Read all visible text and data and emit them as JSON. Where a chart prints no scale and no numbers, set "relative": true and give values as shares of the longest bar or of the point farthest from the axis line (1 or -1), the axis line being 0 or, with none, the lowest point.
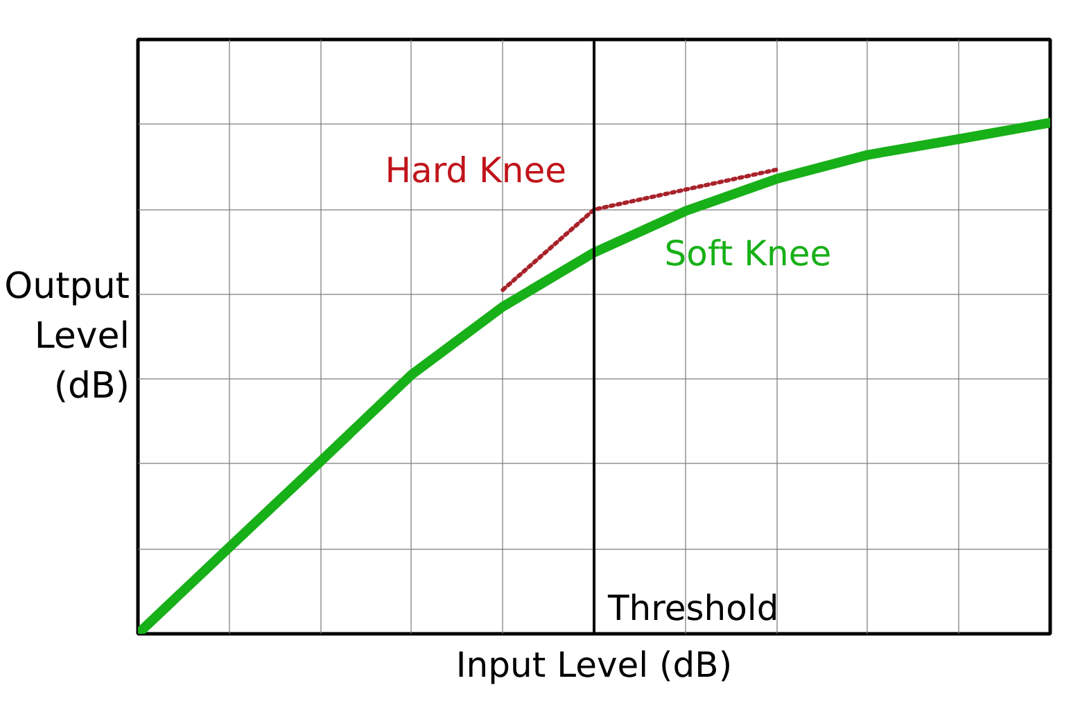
{
  "chart_data": {
    "type": "line",
    "relative": true,
    "xlabel": "Input Level (dB)",
    "ylabel": "Output\nLevel\n(dB)",
    "categories": [
      null,
      null,
      null,
      null,
      null,
      null,
      null,
      null,
      null,
      null,
      null
    ],
    "grid": true,
    "marker": "none",
    "annotations": [
      "Threshold"
    ],
    "series": [
      {
        "name": "Hard Knee",
        "color": "#a8222a",
        "line_style": "dotted",
        "values": [
          null,
          null,
          null,
          null,
          0.673,
          0.83,
          0.869,
          0.908,
          null,
          null,
          null
        ]
      },
      {
        "name": "Soft Knee",
        "color": "#18b018",
        "line_style": "solid",
        "values": [
          0,
          0.169,
          0.337,
          0.507,
          0.64,
          0.746,
          0.827,
          0.89,
          0.937,
          0.968,
          1
        ]
      }
    ]
  }
}
